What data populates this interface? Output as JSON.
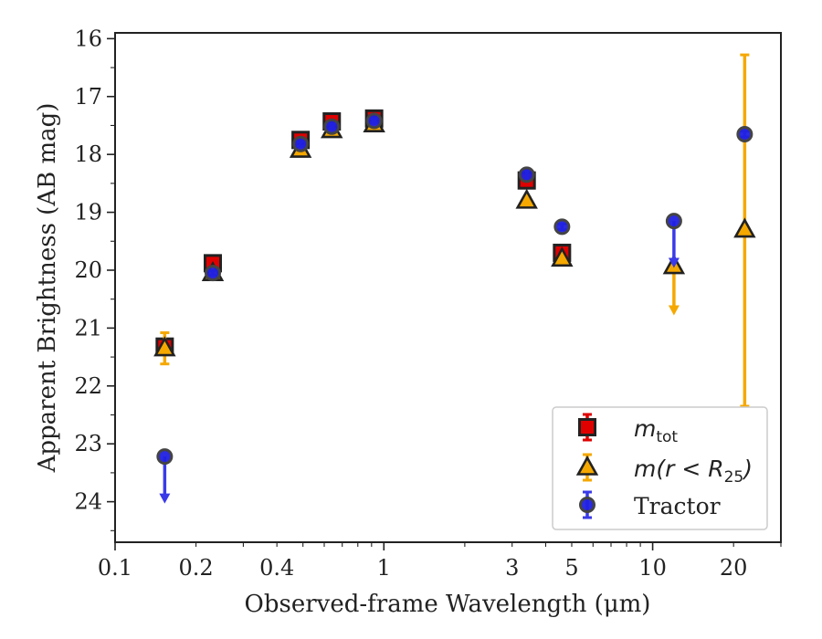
{
  "chart_data": {
    "type": "scatter",
    "xlabel": "Observed-frame Wavelength (μm)",
    "ylabel": "Apparent Brightness (AB mag)",
    "x_scale": "log",
    "xlim": [
      0.1,
      30
    ],
    "ylim": [
      24.7,
      15.9
    ],
    "y_inverted": true,
    "x_tick_labels": [
      {
        "value": 0.1,
        "label": "0.1"
      },
      {
        "value": 0.2,
        "label": "0.2"
      },
      {
        "value": 0.4,
        "label": "0.4"
      },
      {
        "value": 1,
        "label": "1"
      },
      {
        "value": 3,
        "label": "3"
      },
      {
        "value": 5,
        "label": "5"
      },
      {
        "value": 10,
        "label": "10"
      },
      {
        "value": 20,
        "label": "20"
      }
    ],
    "y_tick_labels": [
      {
        "value": 16,
        "label": "16"
      },
      {
        "value": 17,
        "label": "17"
      },
      {
        "value": 18,
        "label": "18"
      },
      {
        "value": 19,
        "label": "19"
      },
      {
        "value": 20,
        "label": "20"
      },
      {
        "value": 21,
        "label": "21"
      },
      {
        "value": 22,
        "label": "22"
      },
      {
        "value": 23,
        "label": "23"
      },
      {
        "value": 24,
        "label": "24"
      }
    ],
    "grid": false,
    "legend_position": "bottom-right",
    "series": [
      {
        "key": "mtot",
        "legend_main": "m",
        "legend_sub": "tot",
        "marker": "square",
        "color": "#e00000",
        "edge_color": "#222222",
        "error_color": "#e00000",
        "points": [
          {
            "x": 0.153,
            "y": 21.32,
            "err": 0.1
          },
          {
            "x": 0.231,
            "y": 19.88,
            "err": 0.08
          },
          {
            "x": 0.49,
            "y": 17.75,
            "err": 0.05
          },
          {
            "x": 0.64,
            "y": 17.43,
            "err": 0.05
          },
          {
            "x": 0.92,
            "y": 17.38,
            "err": 0.05
          },
          {
            "x": 3.4,
            "y": 18.45,
            "err": 0.1
          },
          {
            "x": 4.6,
            "y": 19.7,
            "err": 0.1
          }
        ]
      },
      {
        "key": "mr25",
        "legend_main": "m(r < R",
        "legend_sub": "25",
        "legend_tail": ")",
        "marker": "triangle",
        "color": "#f5a800",
        "edge_color": "#222222",
        "error_color": "#f5a800",
        "points": [
          {
            "x": 0.153,
            "y": 21.35,
            "err": 0.27
          },
          {
            "x": 0.231,
            "y": 20.05,
            "err": 0.05
          },
          {
            "x": 0.49,
            "y": 17.92,
            "err": 0.05
          },
          {
            "x": 0.64,
            "y": 17.58,
            "err": 0.05
          },
          {
            "x": 0.92,
            "y": 17.48,
            "err": 0.05
          },
          {
            "x": 3.4,
            "y": 18.8,
            "err": 0.05
          },
          {
            "x": 4.6,
            "y": 19.8,
            "err": 0.05
          },
          {
            "x": 12,
            "y": 19.93,
            "upper_limit_to": 20.75
          },
          {
            "x": 22,
            "y": 19.3,
            "err_low": 16.28,
            "err_high": 22.35
          }
        ]
      },
      {
        "key": "tractor",
        "legend_main": "Tractor",
        "marker": "circle",
        "color": "#2020e0",
        "edge_color": "#444444",
        "error_color": "#3a3ae8",
        "points": [
          {
            "x": 0.153,
            "y": 23.22,
            "upper_limit_to": 24.0
          },
          {
            "x": 0.231,
            "y": 20.05,
            "err": 0.04
          },
          {
            "x": 0.49,
            "y": 17.82,
            "err": 0.04
          },
          {
            "x": 0.64,
            "y": 17.52,
            "err": 0.04
          },
          {
            "x": 0.92,
            "y": 17.42,
            "err": 0.04
          },
          {
            "x": 3.4,
            "y": 18.35,
            "err": 0.08
          },
          {
            "x": 4.6,
            "y": 19.25,
            "err": 0.05
          },
          {
            "x": 12,
            "y": 19.15,
            "upper_limit_to": 19.93
          },
          {
            "x": 22,
            "y": 17.65,
            "err": 0.05
          }
        ]
      }
    ]
  }
}
